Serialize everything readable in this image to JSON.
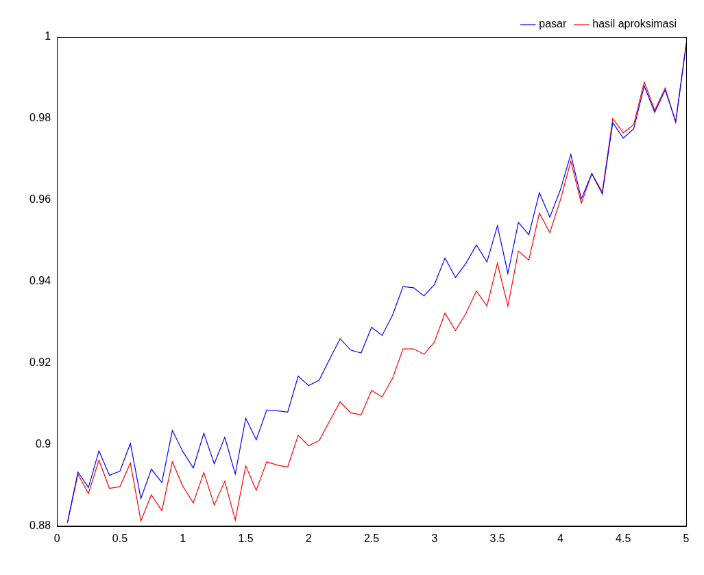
{
  "chart_data": {
    "type": "line",
    "x": [
      0.0833,
      0.1667,
      0.25,
      0.3333,
      0.4167,
      0.5,
      0.5833,
      0.6667,
      0.75,
      0.8333,
      0.9167,
      1.0,
      1.0833,
      1.1667,
      1.25,
      1.3333,
      1.4167,
      1.5,
      1.5833,
      1.6667,
      1.75,
      1.8333,
      1.9167,
      2.0,
      2.0833,
      2.1667,
      2.25,
      2.3333,
      2.4167,
      2.5,
      2.5833,
      2.6667,
      2.75,
      2.8333,
      2.9167,
      3.0,
      3.0833,
      3.1667,
      3.25,
      3.3333,
      3.4167,
      3.5,
      3.5833,
      3.6667,
      3.75,
      3.8333,
      3.9167,
      4.0,
      4.0833,
      4.1667,
      4.25,
      4.3333,
      4.4167,
      4.5,
      4.5833,
      4.6667,
      4.75,
      4.8333,
      4.9167,
      5.0
    ],
    "series": [
      {
        "name": "pasar",
        "color": "#0000ff",
        "values": [
          0.881,
          0.8933,
          0.8895,
          0.8985,
          0.8925,
          0.8935,
          0.9003,
          0.8868,
          0.894,
          0.8907,
          0.9035,
          0.8983,
          0.8943,
          0.9028,
          0.8953,
          0.9018,
          0.8928,
          0.9065,
          0.9012,
          0.9085,
          0.9083,
          0.908,
          0.9168,
          0.9145,
          0.9158,
          0.921,
          0.926,
          0.9232,
          0.9225,
          0.9288,
          0.9268,
          0.9318,
          0.9388,
          0.9385,
          0.9365,
          0.9393,
          0.9458,
          0.941,
          0.9445,
          0.949,
          0.9448,
          0.9537,
          0.942,
          0.9545,
          0.9515,
          0.9618,
          0.9558,
          0.9625,
          0.9712,
          0.9603,
          0.9665,
          0.9615,
          0.979,
          0.9752,
          0.9775,
          0.988,
          0.9815,
          0.987,
          0.9793,
          0.998
        ]
      },
      {
        "name": "hasil aproksimasi",
        "color": "#ff0000",
        "values": [
          0.8808,
          0.8928,
          0.888,
          0.8962,
          0.8893,
          0.8897,
          0.8955,
          0.8813,
          0.8877,
          0.8838,
          0.8958,
          0.8898,
          0.8857,
          0.8932,
          0.8852,
          0.891,
          0.8815,
          0.8948,
          0.8888,
          0.8958,
          0.895,
          0.8945,
          0.9023,
          0.8997,
          0.901,
          0.9058,
          0.9105,
          0.9078,
          0.9073,
          0.9133,
          0.9117,
          0.9163,
          0.9235,
          0.9235,
          0.9222,
          0.9252,
          0.9323,
          0.928,
          0.9322,
          0.9377,
          0.934,
          0.9445,
          0.934,
          0.9475,
          0.9453,
          0.9568,
          0.952,
          0.96,
          0.9695,
          0.9592,
          0.9665,
          0.962,
          0.98,
          0.9765,
          0.9785,
          0.989,
          0.982,
          0.9875,
          0.979,
          0.9985
        ]
      }
    ],
    "xlim": [
      0,
      5
    ],
    "xticks": [
      0,
      0.5,
      1,
      1.5,
      2,
      2.5,
      3,
      3.5,
      4,
      4.5,
      5
    ],
    "ylim": [
      0.88,
      1
    ],
    "yticks": [
      0.88,
      0.9,
      0.92,
      0.94,
      0.96,
      0.98,
      1
    ],
    "grid": false,
    "legend": "top"
  }
}
